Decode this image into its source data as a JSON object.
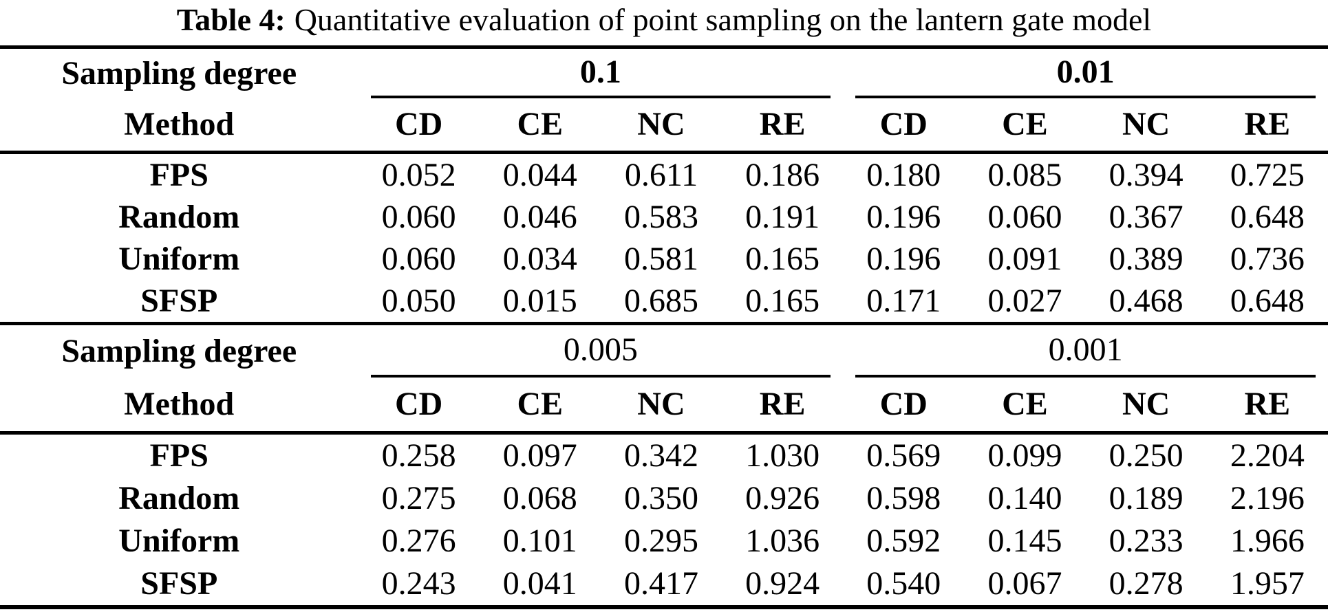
{
  "caption": {
    "label": "Table 4:",
    "text": "Quantitative evaluation of point sampling on the lantern gate model"
  },
  "table": {
    "sampling_degree_label": "Sampling degree",
    "method_label": "Method",
    "metrics": [
      "CD",
      "CE",
      "NC",
      "RE"
    ],
    "text_color": "#000000",
    "background_color": "#ffffff",
    "sections": [
      {
        "degrees": [
          "0.1",
          "0.01"
        ],
        "degrees_bold": true,
        "rows": [
          {
            "method": "FPS",
            "bold": false,
            "values": [
              "0.052",
              "0.044",
              "0.611",
              "0.186",
              "0.180",
              "0.085",
              "0.394",
              "0.725"
            ]
          },
          {
            "method": "Random",
            "bold": false,
            "values": [
              "0.060",
              "0.046",
              "0.583",
              "0.191",
              "0.196",
              "0.060",
              "0.367",
              "0.648"
            ]
          },
          {
            "method": "Uniform",
            "bold": false,
            "values": [
              "0.060",
              "0.034",
              "0.581",
              "0.165",
              "0.196",
              "0.091",
              "0.389",
              "0.736"
            ]
          },
          {
            "method": "SFSP",
            "bold": true,
            "values": [
              "0.050",
              "0.015",
              "0.685",
              "0.165",
              "0.171",
              "0.027",
              "0.468",
              "0.648"
            ]
          }
        ]
      },
      {
        "degrees": [
          "0.005",
          "0.001"
        ],
        "degrees_bold": false,
        "rows": [
          {
            "method": "FPS",
            "bold": false,
            "values": [
              "0.258",
              "0.097",
              "0.342",
              "1.030",
              "0.569",
              "0.099",
              "0.250",
              "2.204"
            ]
          },
          {
            "method": "Random",
            "bold": false,
            "values": [
              "0.275",
              "0.068",
              "0.350",
              "0.926",
              "0.598",
              "0.140",
              "0.189",
              "2.196"
            ]
          },
          {
            "method": "Uniform",
            "bold": false,
            "values": [
              "0.276",
              "0.101",
              "0.295",
              "1.036",
              "0.592",
              "0.145",
              "0.233",
              "1.966"
            ]
          },
          {
            "method": "SFSP",
            "bold": true,
            "values": [
              "0.243",
              "0.041",
              "0.417",
              "0.924",
              "0.540",
              "0.067",
              "0.278",
              "1.957"
            ]
          }
        ]
      }
    ]
  }
}
